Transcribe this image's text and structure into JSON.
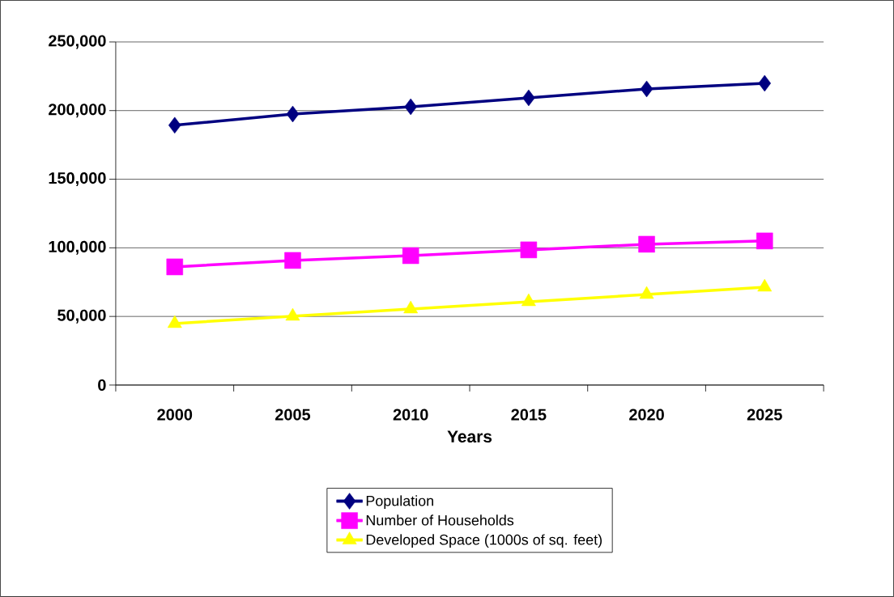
{
  "chart_data": {
    "type": "line",
    "xlabel": "Years",
    "categories": [
      "2000",
      "2005",
      "2010",
      "2015",
      "2020",
      "2025"
    ],
    "series": [
      {
        "name": "Population",
        "color": "#000080",
        "marker": "diamond",
        "values": [
          189300,
          197500,
          202800,
          209300,
          215800,
          219900
        ]
      },
      {
        "name": "Number of Households",
        "color": "#ff00ff",
        "marker": "square",
        "values": [
          86100,
          90800,
          94300,
          98500,
          102600,
          105000
        ]
      },
      {
        "name": "Developed Space (1000s of sq. feet)",
        "color": "#ffff00",
        "marker": "triangle",
        "values": [
          44800,
          50100,
          55400,
          60700,
          66000,
          71300
        ]
      }
    ],
    "ylim": [
      0,
      250000
    ],
    "yticks": [
      0,
      {
        "value": 50000,
        "label": "50,000"
      },
      {
        "value": 100000,
        "label": "100,000"
      },
      {
        "value": 150000,
        "label": "150,000"
      },
      {
        "value": 200000,
        "label": "200,000"
      },
      {
        "value": 250000,
        "label": "250,000"
      }
    ],
    "grid": "y",
    "legend": "bottom"
  }
}
